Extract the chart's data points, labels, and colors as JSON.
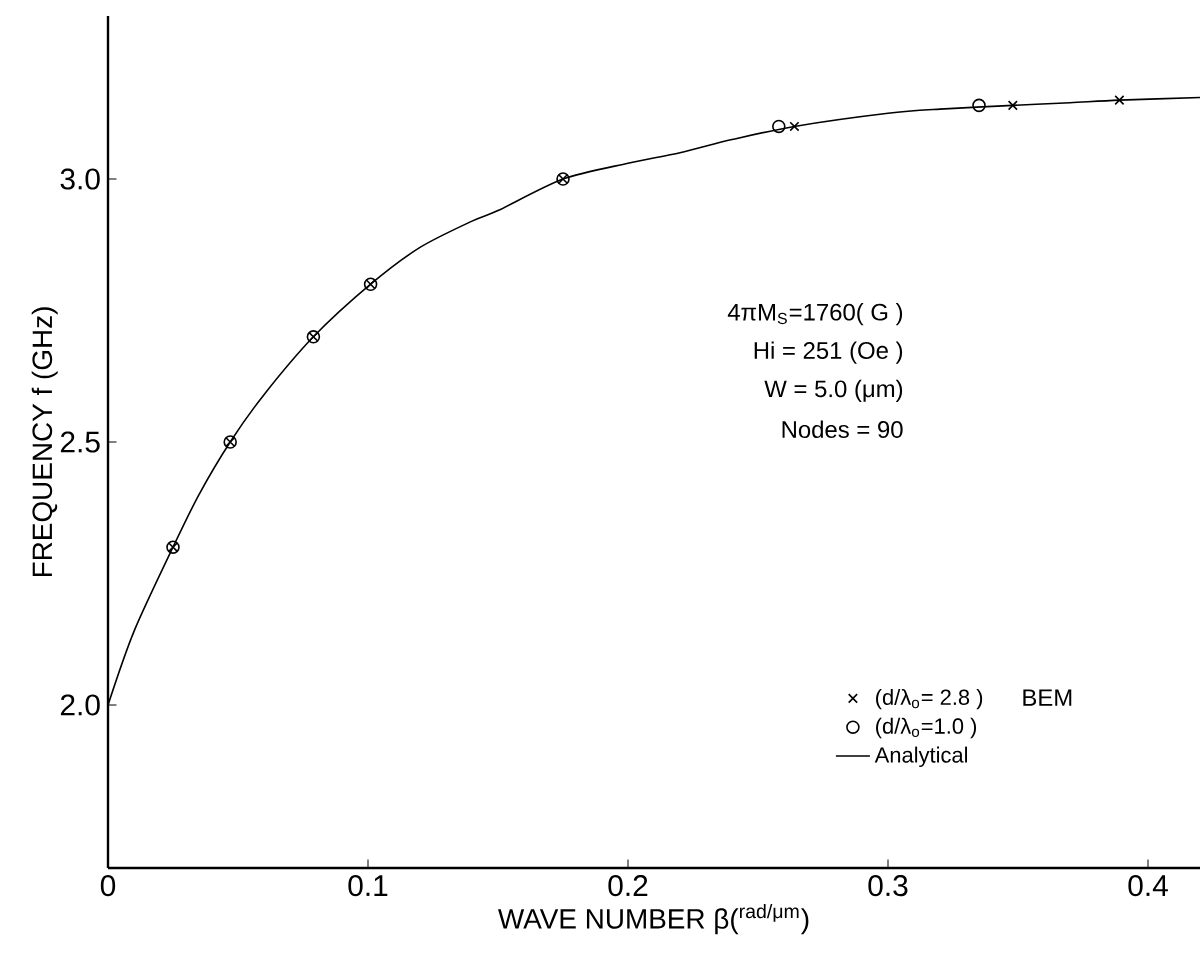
{
  "chart_data": {
    "type": "line",
    "xlabel": "WAVE NUMBER  β($^{rad/μm}$)",
    "ylabel": "FREQUENCY   f (GHz)",
    "xlim": [
      0,
      0.42
    ],
    "ylim": [
      1.69,
      3.31
    ],
    "xticks": [
      0,
      0.1,
      0.2,
      0.3,
      0.4
    ],
    "yticks": [
      {
        "value": 2,
        "label": "2.0"
      },
      {
        "value": 2.5,
        "label": "2.5"
      },
      {
        "value": 3,
        "label": "3.0"
      }
    ],
    "series": [
      {
        "name": "(d/λ$_{o}$= 2.8 )",
        "type": "scatter",
        "marker": "cross",
        "color": "#000000",
        "x": [
          0.025,
          0.047,
          0.079,
          0.101,
          0.175,
          0.264,
          0.348,
          0.389
        ],
        "values": [
          2.3,
          2.5,
          2.7,
          2.8,
          3.0,
          3.1,
          3.14,
          3.15
        ]
      },
      {
        "name": "(d/λ$_{o}$=1.0 )",
        "type": "scatter",
        "marker": "circle",
        "color": "#000000",
        "x": [
          0.025,
          0.047,
          0.079,
          0.101,
          0.175,
          0.258,
          0.335
        ],
        "values": [
          2.3,
          2.5,
          2.7,
          2.8,
          3.0,
          3.1,
          3.14
        ]
      },
      {
        "name": "Analytical",
        "marker": "none",
        "line_style": "solid",
        "color": "#000000",
        "x": [
          0,
          0.01,
          0.025,
          0.035,
          0.047,
          0.06,
          0.079,
          0.101,
          0.12,
          0.14,
          0.15,
          0.175,
          0.2,
          0.22,
          0.24,
          0.264,
          0.3,
          0.32,
          0.348,
          0.37,
          0.389,
          0.42
        ],
        "values": [
          2.0,
          2.14,
          2.3,
          2.4,
          2.5,
          2.59,
          2.7,
          2.8,
          2.87,
          2.92,
          2.94,
          3.0,
          3.03,
          3.05,
          3.075,
          3.1,
          3.125,
          3.133,
          3.14,
          3.145,
          3.15,
          3.155
        ]
      }
    ],
    "legend": "right",
    "legend_title": "BEM",
    "annotations": [
      "4πM$_{S}$=1760( G )",
      "Hi = 251 (Oe )",
      "W = 5.0 (μm)",
      "Nodes = 90"
    ]
  }
}
